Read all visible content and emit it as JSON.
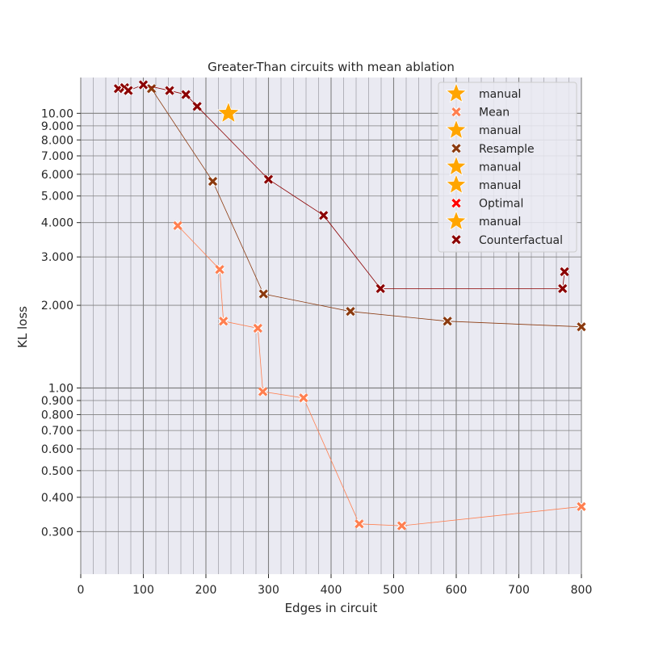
{
  "chart_data": {
    "type": "scatter",
    "title": "Greater-Than circuits with mean ablation",
    "xlabel": "Edges in circuit",
    "ylabel": "KL loss",
    "xlim": [
      0,
      800
    ],
    "ylim": [
      0.21,
      13.5
    ],
    "yscale": "log",
    "grid": true,
    "legend_position": "top-right",
    "x_ticks": [
      0,
      100,
      200,
      300,
      400,
      500,
      600,
      700,
      800
    ],
    "x_tick_labels": [
      "0",
      "100",
      "200",
      "300",
      "400",
      "500",
      "600",
      "700",
      "800"
    ],
    "y_ticks": [
      0.3,
      0.4,
      0.5,
      0.6,
      0.7,
      0.8,
      0.9,
      1.0,
      2.0,
      3.0,
      4.0,
      5.0,
      6.0,
      7.0,
      8.0,
      9.0,
      10.0
    ],
    "y_tick_labels": [
      "0.300",
      "0.400",
      "0.500",
      "0.600",
      "0.700",
      "0.800",
      "0.900",
      "1.00",
      "2.000",
      "3.000",
      "4.000",
      "5.000",
      "6.000",
      "7.000",
      "8.000",
      "9.000",
      "10.00"
    ],
    "series": [
      {
        "name": "Mean",
        "color": "#ff7f50",
        "marker": "x",
        "x": [
          155,
          222,
          228,
          283,
          291,
          356,
          445,
          513,
          800
        ],
        "y": [
          3.9,
          2.7,
          1.75,
          1.65,
          0.97,
          0.92,
          0.32,
          0.315,
          0.37
        ]
      },
      {
        "name": "Resample",
        "color": "#8b3a0f",
        "marker": "x",
        "x": [
          113,
          211,
          292,
          431,
          586,
          800
        ],
        "y": [
          12.3,
          5.65,
          2.2,
          1.9,
          1.75,
          1.67
        ]
      },
      {
        "name": "Optimal",
        "color": "#ff0000",
        "marker": "x",
        "x": [],
        "y": []
      },
      {
        "name": "Counterfactual",
        "color": "#8b0000",
        "marker": "x",
        "x": [
          60,
          70,
          76,
          100,
          142,
          168,
          186,
          300,
          388,
          479,
          770,
          773
        ],
        "y": [
          12.3,
          12.4,
          12.1,
          12.7,
          12.1,
          11.7,
          10.6,
          5.75,
          4.25,
          2.3,
          2.3,
          2.65
        ]
      },
      {
        "name": "manual",
        "color": "#ffa500",
        "marker": "star",
        "x": [
          236
        ],
        "y": [
          10.0
        ]
      }
    ],
    "legend": [
      {
        "label": "manual",
        "marker": "star",
        "color": "#ffa500"
      },
      {
        "label": "Mean",
        "marker": "x",
        "color": "#ff7f50"
      },
      {
        "label": "manual",
        "marker": "star",
        "color": "#ffa500"
      },
      {
        "label": "Resample",
        "marker": "x",
        "color": "#8b3a0f"
      },
      {
        "label": "manual",
        "marker": "star",
        "color": "#ffa500"
      },
      {
        "label": "manual",
        "marker": "star",
        "color": "#ffa500"
      },
      {
        "label": "Optimal",
        "marker": "x",
        "color": "#ff0000"
      },
      {
        "label": "manual",
        "marker": "star",
        "color": "#ffa500"
      },
      {
        "label": "Counterfactual",
        "marker": "x",
        "color": "#8b0000"
      }
    ]
  }
}
